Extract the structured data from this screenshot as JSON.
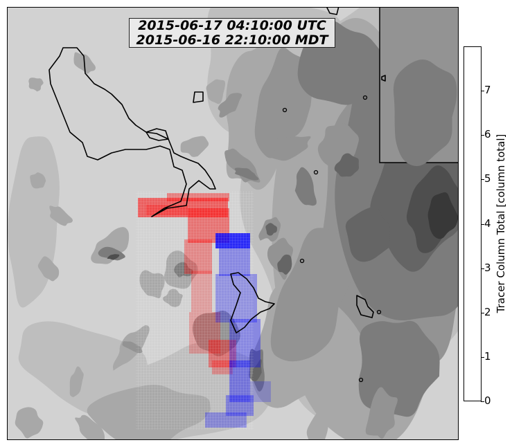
{
  "figure": {
    "time_utc": "2015-06-17 04:10:00 UTC",
    "time_local": "2015-06-16 22:10:00 MDT"
  },
  "colors": {
    "background": "#ffffff",
    "terrain_levels": [
      "#d2d2d2",
      "#bebebe",
      "#a8a8a8",
      "#939393",
      "#7c7c7c",
      "#656565",
      "#4e4e4e",
      "#383838"
    ],
    "tracer_red": "#ff0000",
    "tracer_blue": "#0000ff",
    "outline": "#000000"
  },
  "chart_data": {
    "type": "heatmap",
    "title": "",
    "colorbar": {
      "label": "Tracer Column Total [column total]",
      "ticks": [
        "0",
        "1",
        "2",
        "3",
        "4",
        "5",
        "6",
        "7"
      ],
      "range": [
        0,
        8
      ],
      "colors": [
        "#ffffff",
        "#dcdcff",
        "#b9b9ff",
        "#9696ff",
        "#7373ff",
        "#5050ff",
        "#2d2dff",
        "#0000ff"
      ]
    },
    "series": [
      {
        "tracer": "red",
        "location": "north-west of ridge, spreading south"
      },
      {
        "tracer": "blue",
        "location": "center, spreading south"
      }
    ],
    "grid": false,
    "background": "grayscale terrain contours"
  }
}
